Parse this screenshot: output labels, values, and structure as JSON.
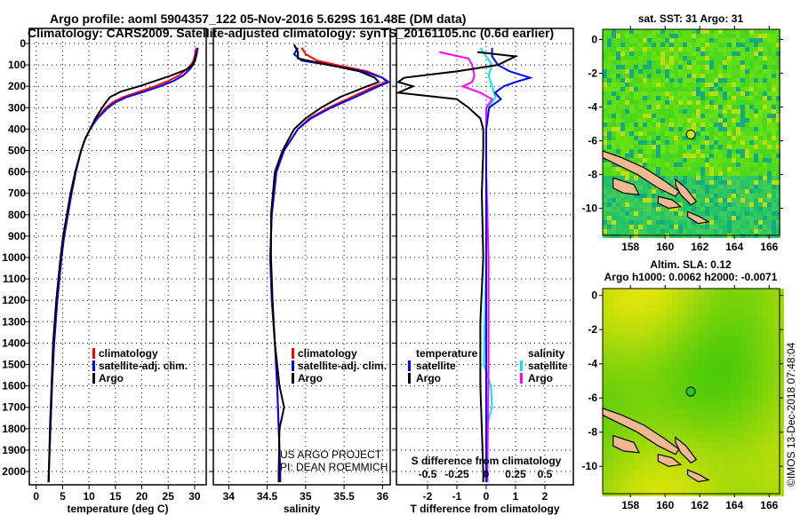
{
  "title_line1": "Argo profile: aoml 5904357_122 05-Nov-2016 5.629S 161.48E (DM data)",
  "title_line2": "Climatology: CARS2009. Satellite-adjusted climatology: synTS_20161105.nc (0.6d earlier)",
  "credit_line1": "US ARGO PROJECT",
  "credit_line2": "PI: DEAN ROEMMICH",
  "timestamp": "©IMOS 13-Dec-2018 07:48:04",
  "colors": {
    "climatology": "#ff0000",
    "satellite": "#0000ff",
    "argo": "#000000",
    "s_satellite": "#00e5ee",
    "s_argo": "#ff00ff"
  },
  "chart_data": [
    {
      "type": "line",
      "xlabel": "temperature (deg C)",
      "ylabel": "depth",
      "xlim": [
        -1.3,
        32.2
      ],
      "ylim": [
        2050,
        -5
      ],
      "xticks": [
        0,
        5,
        10,
        15,
        20,
        25,
        30
      ],
      "yticks": [
        0,
        100,
        200,
        300,
        400,
        500,
        600,
        700,
        800,
        900,
        1000,
        1100,
        1200,
        1300,
        1400,
        1500,
        1600,
        1700,
        1800,
        1900,
        2000
      ],
      "legend": [
        "climatology",
        "satellite-adj. clim.",
        "Argo"
      ],
      "legend_placement": "lower-right",
      "series": [
        {
          "name": "climatology",
          "depth": [
            20,
            50,
            80,
            100,
            120,
            150,
            175,
            200,
            225,
            250,
            275,
            300,
            350,
            400,
            450,
            500,
            600,
            700,
            800,
            900,
            1000,
            1200,
            1400,
            1600,
            1800,
            2000,
            2050
          ],
          "values": [
            30.3,
            30.1,
            29.8,
            29.3,
            28.5,
            27,
            25,
            22.5,
            19.5,
            16.5,
            14.5,
            13.2,
            11.5,
            10.2,
            9.2,
            8.5,
            7.5,
            6.7,
            6,
            5.3,
            4.8,
            4,
            3.4,
            3,
            2.7,
            2.4,
            2.3
          ]
        },
        {
          "name": "satellite-adj. clim.",
          "depth": [
            20,
            50,
            80,
            100,
            120,
            150,
            175,
            200,
            225,
            250,
            275,
            300,
            350,
            400,
            450,
            500,
            600,
            700,
            800,
            900,
            1000,
            1200,
            1400,
            1600,
            1800,
            2000,
            2050
          ],
          "values": [
            30.6,
            30.4,
            30.1,
            29.7,
            29.1,
            27.8,
            26,
            23.5,
            20.5,
            17.2,
            15,
            13.6,
            11.6,
            10.2,
            9.2,
            8.5,
            7.5,
            6.7,
            6,
            5.3,
            4.8,
            4,
            3.4,
            3,
            2.7,
            2.4,
            2.3
          ]
        },
        {
          "name": "Argo",
          "depth": [
            40,
            60,
            80,
            100,
            120,
            150,
            175,
            200,
            225,
            250,
            275,
            300,
            350,
            400,
            450,
            500,
            600,
            700,
            800,
            900,
            1000,
            1200,
            1400,
            1600,
            1800,
            2000,
            2050
          ],
          "values": [
            30.3,
            30.2,
            30,
            29.6,
            28.6,
            25.5,
            22.5,
            19.5,
            16,
            14,
            13.2,
            12.5,
            11.2,
            10.2,
            9.2,
            8.5,
            7.4,
            6.5,
            5.8,
            5.1,
            4.6,
            3.8,
            3.2,
            2.9,
            2.6,
            2.4,
            2.4
          ]
        }
      ]
    },
    {
      "type": "line",
      "xlabel": "salinity",
      "xlim": [
        33.8,
        36.1
      ],
      "xticks": [
        34,
        34.5,
        35,
        35.5,
        36
      ],
      "legend": [
        "climatology",
        "satellite-adj. clim.",
        "Argo"
      ],
      "legend_placement": "lower-right",
      "series": [
        {
          "name": "climatology",
          "depth": [
            20,
            50,
            80,
            100,
            130,
            160,
            180,
            200,
            250,
            300,
            350,
            400,
            500,
            600,
            800,
            1000,
            1200,
            1400,
            1600,
            1800,
            2000,
            2050
          ],
          "values": [
            34.95,
            35.0,
            35.15,
            35.4,
            35.8,
            36.0,
            36.05,
            35.9,
            35.6,
            35.3,
            35.05,
            34.9,
            34.72,
            34.62,
            34.56,
            34.54,
            34.56,
            34.6,
            34.63,
            34.65,
            34.67,
            34.67
          ]
        },
        {
          "name": "satellite-adj. clim.",
          "depth": [
            20,
            50,
            80,
            100,
            130,
            160,
            180,
            200,
            250,
            300,
            350,
            400,
            500,
            600,
            800,
            1000,
            1200,
            1400,
            1600,
            1800,
            2000,
            2050
          ],
          "values": [
            34.9,
            34.85,
            34.95,
            35.3,
            35.75,
            36.0,
            36.08,
            35.95,
            35.65,
            35.33,
            35.07,
            34.9,
            34.72,
            34.62,
            34.56,
            34.54,
            34.56,
            34.6,
            34.63,
            34.65,
            34.67,
            34.67
          ]
        },
        {
          "name": "Argo",
          "depth": [
            5,
            40,
            70,
            100,
            130,
            160,
            180,
            200,
            250,
            300,
            350,
            400,
            500,
            600,
            800,
            1000,
            1200,
            1400,
            1600,
            1700,
            1800,
            2000,
            2050
          ],
          "values": [
            34.85,
            34.9,
            34.9,
            35.3,
            35.7,
            35.9,
            35.95,
            35.8,
            35.45,
            35.2,
            35.0,
            34.85,
            34.7,
            34.6,
            34.55,
            34.55,
            34.57,
            34.6,
            34.66,
            34.72,
            34.66,
            34.65,
            34.65
          ]
        }
      ]
    },
    {
      "type": "line",
      "xlabel": "T difference from climatology",
      "xlabel2": "S difference from climatology",
      "xlim": [
        -3.06,
        2.97
      ],
      "xticks": [
        -2,
        -1,
        0,
        1,
        2
      ],
      "xticks2": [
        -0.5,
        -0.25,
        0,
        0.25,
        0.5
      ],
      "legend": {
        "temperature_heading": "temperature",
        "salinity_heading": "salinity",
        "t_satellite": "satellite",
        "t_argo": "Argo",
        "s_satellite": "satellite",
        "s_argo": "Argo"
      },
      "series": [
        {
          "name": "T satellite",
          "depth": [
            20,
            60,
            100,
            130,
            160,
            180,
            200,
            230,
            260,
            300,
            400,
            600,
            1000,
            1500,
            2000,
            2050
          ],
          "values": [
            0.2,
            0.2,
            0.4,
            0.8,
            1.5,
            1.0,
            0.6,
            0.3,
            0.5,
            0.1,
            0,
            0,
            0,
            0,
            0,
            0
          ]
        },
        {
          "name": "T Argo",
          "depth": [
            40,
            60,
            100,
            130,
            160,
            180,
            200,
            230,
            260,
            300,
            350,
            400,
            500,
            700,
            1000,
            1300,
            1600,
            1800,
            2000,
            2050
          ],
          "values": [
            -0.3,
            1.0,
            0.4,
            -1.0,
            -2.8,
            -3.0,
            -2.5,
            -3.0,
            -1.0,
            -0.6,
            -0.2,
            -0.1,
            -0.1,
            -0.15,
            -0.1,
            -0.2,
            -0.2,
            -0.15,
            -0.1,
            -0.1
          ]
        },
        {
          "name": "S satellite",
          "depth": [
            20,
            60,
            100,
            150,
            200,
            250,
            300,
            400,
            600,
            1000,
            1500,
            1600,
            1700,
            1800,
            2000,
            2050
          ],
          "values": [
            -0.05,
            0,
            0.05,
            0.02,
            0.05,
            0.08,
            0.02,
            0,
            0,
            0,
            -0.02,
            0.04,
            0.05,
            0,
            0,
            0
          ]
        },
        {
          "name": "S Argo",
          "depth": [
            40,
            70,
            100,
            150,
            180,
            200,
            230,
            260,
            300,
            400,
            600,
            1000,
            1500,
            2000,
            2050
          ],
          "values": [
            -0.4,
            -0.15,
            -0.12,
            -0.1,
            -0.12,
            -0.2,
            -0.05,
            0.05,
            0,
            0,
            0,
            0.02,
            0.02,
            0.01,
            0.01
          ]
        }
      ]
    },
    {
      "type": "heatmap",
      "title": "sat. SST: 31 Argo: 31",
      "xticks": [
        158,
        160,
        162,
        164,
        166
      ],
      "yticks": [
        0,
        -2,
        -4,
        -6,
        -8,
        -10
      ],
      "xlim": [
        156.4,
        166.6
      ],
      "ylim": [
        -11.6,
        0.6
      ],
      "marker": {
        "lon": 161.48,
        "lat": -5.629
      }
    },
    {
      "type": "heatmap",
      "title": "Altim. SLA: 0.12",
      "subtitle": "Argo h1000: 0.0062 h2000: -0.0071",
      "xticks": [
        158,
        160,
        162,
        164,
        166
      ],
      "yticks": [
        0,
        -2,
        -4,
        -6,
        -8,
        -10
      ],
      "xlim": [
        156.4,
        166.6
      ],
      "ylim": [
        -11.6,
        0.4
      ],
      "marker": {
        "lon": 161.48,
        "lat": -5.629
      }
    }
  ]
}
